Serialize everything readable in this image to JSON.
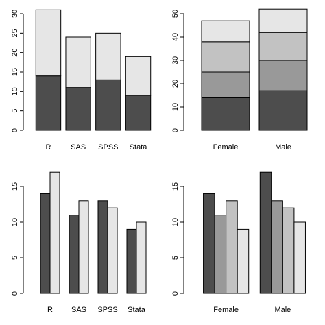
{
  "chart_data": [
    {
      "type": "bar",
      "stacked": true,
      "categories": [
        "R",
        "SAS",
        "SPSS",
        "Stata"
      ],
      "series": [
        {
          "values": [
            14,
            11,
            13,
            9
          ],
          "color": "#4d4d4d"
        },
        {
          "values": [
            17,
            13,
            12,
            10
          ],
          "color": "#e6e6e6"
        }
      ],
      "ylim": [
        0,
        30
      ],
      "yticks": [
        0,
        5,
        10,
        15,
        20,
        25,
        30
      ]
    },
    {
      "type": "bar",
      "stacked": true,
      "categories": [
        "Female",
        "Male"
      ],
      "series": [
        {
          "values": [
            14,
            17
          ],
          "color": "#4d4d4d"
        },
        {
          "values": [
            11,
            13
          ],
          "color": "#999999"
        },
        {
          "values": [
            13,
            12
          ],
          "color": "#c2c2c2"
        },
        {
          "values": [
            9,
            10
          ],
          "color": "#e6e6e6"
        }
      ],
      "ylim": [
        0,
        50
      ],
      "yticks": [
        0,
        10,
        20,
        30,
        40,
        50
      ]
    },
    {
      "type": "bar",
      "grouped": true,
      "categories": [
        "R",
        "SAS",
        "SPSS",
        "Stata"
      ],
      "series": [
        {
          "values": [
            14,
            11,
            13,
            9
          ],
          "color": "#4d4d4d"
        },
        {
          "values": [
            17,
            13,
            12,
            10
          ],
          "color": "#e6e6e6"
        }
      ],
      "ylim": [
        0,
        15
      ],
      "yticks": [
        0,
        5,
        10,
        15
      ]
    },
    {
      "type": "bar",
      "grouped": true,
      "categories": [
        "Female",
        "Male"
      ],
      "series": [
        {
          "values": [
            14,
            17
          ],
          "color": "#4d4d4d"
        },
        {
          "values": [
            11,
            13
          ],
          "color": "#999999"
        },
        {
          "values": [
            13,
            12
          ],
          "color": "#c2c2c2"
        },
        {
          "values": [
            9,
            10
          ],
          "color": "#e6e6e6"
        }
      ],
      "ylim": [
        0,
        15
      ],
      "yticks": [
        0,
        5,
        10,
        15
      ]
    }
  ]
}
